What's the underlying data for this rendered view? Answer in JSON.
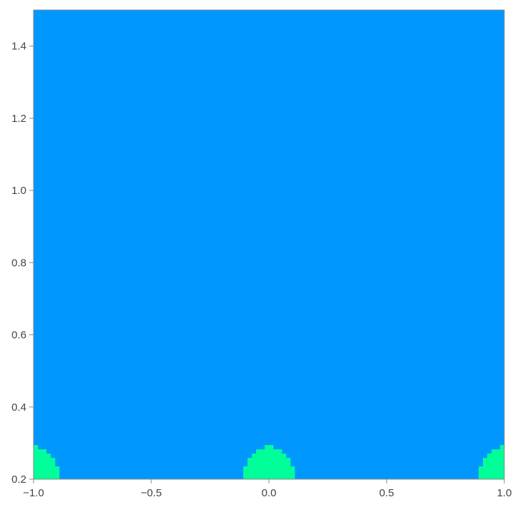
{
  "chart_data": {
    "type": "heatmap",
    "style": "contour",
    "title": "",
    "xlabel": "",
    "ylabel": "",
    "xlim": [
      -1.0,
      1.0
    ],
    "ylim": [
      0.2,
      1.5
    ],
    "x_ticks": [
      -1.0,
      -0.5,
      0.0,
      0.5,
      1.0
    ],
    "x_tick_labels": [
      "−1.0",
      "−0.5",
      "0.0",
      "0.5",
      "1.0"
    ],
    "y_ticks": [
      0.2,
      0.4,
      0.6,
      0.8,
      1.0,
      1.2,
      1.4
    ],
    "y_tick_labels": [
      "0.2",
      "0.4",
      "0.6",
      "0.8",
      "1.0",
      "1.2",
      "1.4"
    ],
    "grid": false,
    "legend": "none",
    "periodicity_x": 1.0,
    "contour_levels": [
      {
        "level": 1,
        "color": "#0097ff"
      },
      {
        "level": 2,
        "color": "#00ff99"
      },
      {
        "level": 3,
        "color": "#66ff00"
      },
      {
        "level": 4,
        "color": "#ffdd00"
      },
      {
        "level": 5,
        "color": "#ff00cc"
      },
      {
        "level": 6,
        "color": "#3300ff"
      },
      {
        "level": 7,
        "color": "#ff0000"
      },
      {
        "level": 8,
        "color": "#ffffff"
      }
    ]
  }
}
